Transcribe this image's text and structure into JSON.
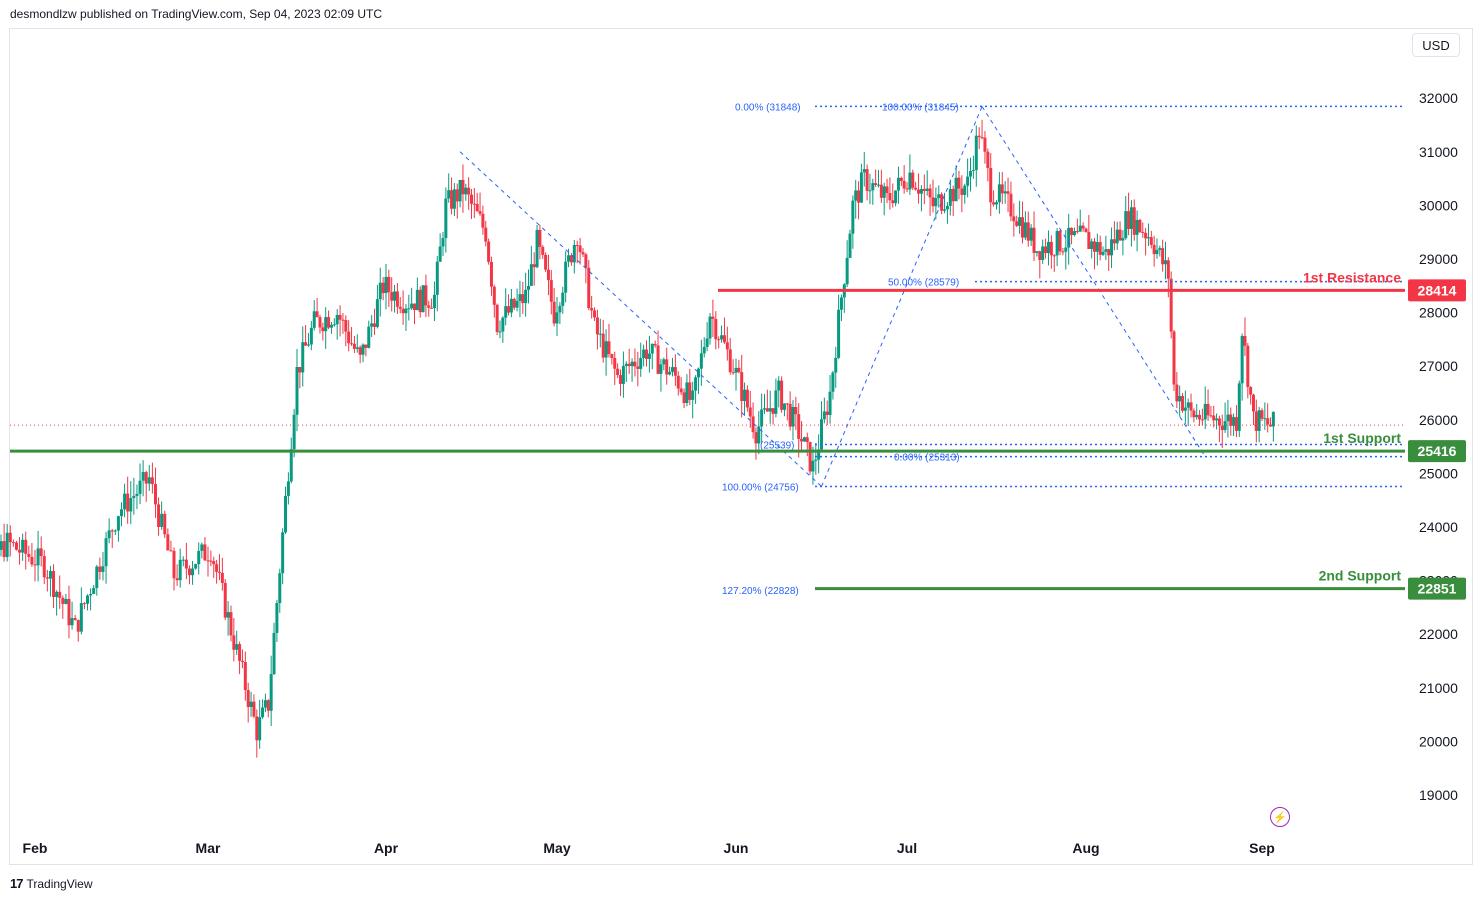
{
  "header": {
    "published_by": "desmondlzw published on TradingView.com, Sep 04, 2023 02:09 UTC"
  },
  "currency": "USD",
  "footer": {
    "brand": "TradingView",
    "logo_text": "17"
  },
  "colors": {
    "up": "#089981",
    "down": "#f23645",
    "resistance": "#f23645",
    "support": "#388e3c",
    "fib": "#2962ff",
    "price_dotted": "#f23645"
  },
  "chart_data": {
    "type": "candlestick",
    "title": "",
    "x_ticks": [
      "Feb",
      "Mar",
      "Apr",
      "May",
      "Jun",
      "Jul",
      "Aug",
      "Sep"
    ],
    "y_ticks": [
      19000,
      20000,
      21000,
      22000,
      23000,
      24000,
      25000,
      26000,
      27000,
      28000,
      29000,
      30000,
      31000,
      32000
    ],
    "ylim": [
      18200,
      33300
    ],
    "current_price": 25900,
    "levels": [
      {
        "name": "1st Resistance",
        "value": 28414,
        "label": "28414",
        "kind": "resistance"
      },
      {
        "name": "1st Support",
        "value": 25416,
        "label": "25416",
        "kind": "support"
      },
      {
        "name": "2nd Support",
        "value": 22851,
        "label": "22851",
        "kind": "support"
      }
    ],
    "fib_labels": [
      {
        "text": "0.00% (31848)",
        "value": 31848
      },
      {
        "text": "100.00% (31845)",
        "value": 31845
      },
      {
        "text": "50.00% (28579)",
        "value": 28579
      },
      {
        "text": "(25539)",
        "value": 25539
      },
      {
        "text": "0.00% (25313)",
        "value": 25313
      },
      {
        "text": "100.00% (24756)",
        "value": 24756
      },
      {
        "text": "127.20% (22828)",
        "value": 22828
      }
    ],
    "price_waypoints": [
      [
        "2023-01-20",
        22900
      ],
      [
        "2023-01-28",
        23700
      ],
      [
        "2023-02-03",
        23300
      ],
      [
        "2023-02-08",
        22100
      ],
      [
        "2023-02-15",
        24300
      ],
      [
        "2023-02-20",
        24900
      ],
      [
        "2023-02-24",
        23100
      ],
      [
        "2023-03-02",
        23600
      ],
      [
        "2023-03-05",
        22300
      ],
      [
        "2023-03-10",
        20200
      ],
      [
        "2023-03-12",
        20700
      ],
      [
        "2023-03-15",
        24500
      ],
      [
        "2023-03-17",
        26900
      ],
      [
        "2023-03-20",
        27800
      ],
      [
        "2023-03-24",
        28000
      ],
      [
        "2023-03-28",
        27100
      ],
      [
        "2023-04-01",
        28500
      ],
      [
        "2023-04-05",
        28200
      ],
      [
        "2023-04-10",
        28300
      ],
      [
        "2023-04-12",
        30000
      ],
      [
        "2023-04-15",
        30300
      ],
      [
        "2023-04-19",
        29500
      ],
      [
        "2023-04-21",
        27800
      ],
      [
        "2023-04-26",
        28300
      ],
      [
        "2023-04-28",
        29300
      ],
      [
        "2023-05-01",
        28000
      ],
      [
        "2023-05-05",
        29500
      ],
      [
        "2023-05-08",
        27700
      ],
      [
        "2023-05-12",
        26800
      ],
      [
        "2023-05-17",
        27300
      ],
      [
        "2023-05-22",
        26800
      ],
      [
        "2023-05-25",
        26300
      ],
      [
        "2023-05-28",
        28000
      ],
      [
        "2023-06-01",
        27000
      ],
      [
        "2023-06-05",
        25800
      ],
      [
        "2023-06-09",
        26500
      ],
      [
        "2023-06-12",
        25900
      ],
      [
        "2023-06-15",
        25100
      ],
      [
        "2023-06-18",
        26500
      ],
      [
        "2023-06-20",
        28300
      ],
      [
        "2023-06-22",
        30000
      ],
      [
        "2023-06-24",
        30500
      ],
      [
        "2023-06-28",
        30100
      ],
      [
        "2023-07-02",
        30600
      ],
      [
        "2023-07-06",
        30000
      ],
      [
        "2023-07-10",
        30300
      ],
      [
        "2023-07-12",
        30400
      ],
      [
        "2023-07-14",
        31400
      ],
      [
        "2023-07-16",
        30300
      ],
      [
        "2023-07-20",
        29900
      ],
      [
        "2023-07-24",
        29200
      ],
      [
        "2023-07-28",
        29300
      ],
      [
        "2023-08-01",
        29400
      ],
      [
        "2023-08-05",
        29100
      ],
      [
        "2023-08-09",
        29800
      ],
      [
        "2023-08-13",
        29400
      ],
      [
        "2023-08-16",
        28700
      ],
      [
        "2023-08-17",
        26600
      ],
      [
        "2023-08-20",
        26100
      ],
      [
        "2023-08-25",
        26000
      ],
      [
        "2023-08-28",
        26000
      ],
      [
        "2023-08-29",
        27700
      ],
      [
        "2023-08-31",
        26000
      ],
      [
        "2023-09-03",
        25900
      ]
    ]
  }
}
